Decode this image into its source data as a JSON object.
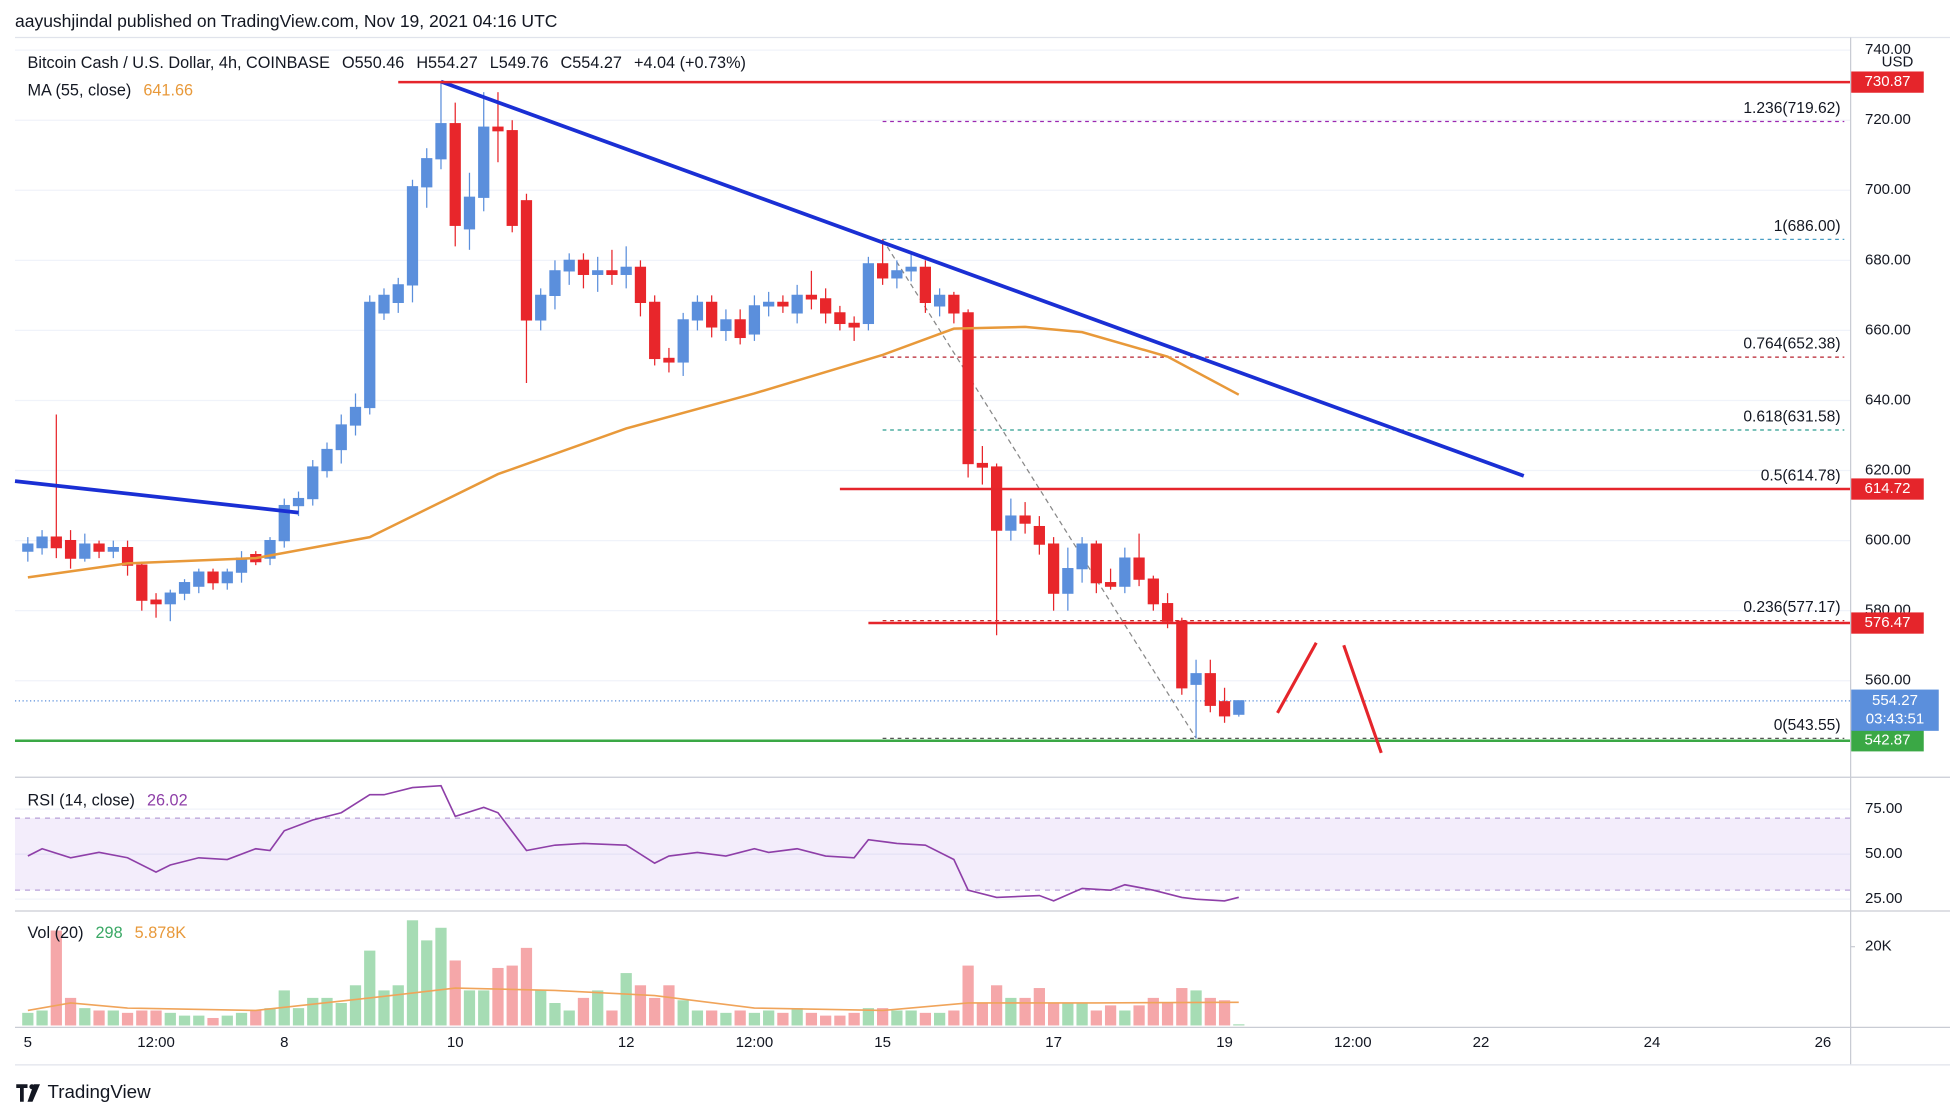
{
  "attribution": "aayushjindal published on TradingView.com, Nov 19, 2021 04:16 UTC",
  "brand": "TradingView",
  "chart_data": [
    {
      "type": "candlestick",
      "title": "Bitcoin Cash / U.S. Dollar, 4h, COINBASE",
      "quote": [
        {
          "value": 550.46,
          "label": "O550.46"
        },
        {
          "value": 554.27,
          "label": "H554.27"
        },
        {
          "value": 549.76,
          "label": "L549.76"
        },
        {
          "value": 554.27,
          "label": "C554.27"
        }
      ],
      "change": "+4.04 (+0.73%)",
      "currency": "USD",
      "up_color": "#5b8fdc",
      "down_color": "#e8262b",
      "x": [
        0,
        1,
        2,
        3,
        4,
        5,
        6,
        7,
        8,
        9,
        10,
        11,
        12,
        13,
        14,
        15,
        16,
        17,
        18,
        19,
        20,
        21,
        22,
        23,
        24,
        25,
        26,
        27,
        28,
        29,
        30,
        31,
        32,
        33,
        34,
        35,
        36,
        37,
        38,
        39,
        40,
        41,
        42,
        43,
        44,
        45,
        46,
        47,
        48,
        49,
        50,
        51,
        52,
        53,
        54,
        55,
        56,
        57,
        58,
        59,
        60,
        61,
        62,
        63,
        64,
        65,
        66,
        67,
        68,
        69,
        70,
        71,
        72,
        73,
        74,
        75,
        76,
        77,
        78,
        79,
        80,
        81,
        82,
        83,
        84,
        85
      ],
      "open": [
        597,
        598,
        601,
        600,
        595,
        599,
        597,
        598,
        593,
        583,
        582,
        585,
        587,
        591,
        588,
        591,
        596,
        595,
        600,
        610,
        612,
        620,
        626,
        633,
        638,
        665,
        668,
        673,
        701,
        709,
        719,
        689,
        698,
        718,
        717,
        697,
        663,
        670,
        677,
        680,
        676,
        677,
        676,
        678,
        668,
        652,
        651,
        663,
        668,
        660,
        663,
        659,
        667,
        668,
        665,
        670,
        669,
        665,
        662,
        662,
        679,
        675,
        677,
        678,
        667,
        670,
        665,
        622,
        621,
        603,
        607,
        604,
        599,
        585,
        592,
        599,
        588,
        587,
        595,
        589,
        582,
        577,
        559,
        562,
        554,
        550.46
      ],
      "high": [
        601,
        603,
        636,
        603,
        602,
        600,
        600,
        600,
        594,
        585,
        586,
        589,
        592,
        592,
        592,
        597,
        597,
        601,
        612,
        614,
        623,
        628,
        636,
        642,
        670,
        672,
        675,
        703,
        712,
        730.87,
        725,
        705,
        728,
        728,
        720,
        699,
        672,
        680,
        682,
        682,
        681,
        683,
        684,
        680,
        670,
        655,
        665,
        670,
        670,
        666,
        666,
        670,
        671,
        670,
        673,
        677,
        672,
        667,
        664,
        681,
        686,
        680,
        682,
        680,
        672,
        671,
        666,
        627,
        622,
        612,
        611,
        607,
        601,
        598,
        601,
        600,
        592,
        598,
        602,
        590,
        585,
        578,
        566,
        566,
        558,
        554.27
      ],
      "low": [
        594,
        596,
        595,
        592,
        594,
        595,
        595,
        590,
        580,
        578,
        577,
        583,
        585,
        586,
        586,
        588,
        593,
        593,
        598,
        607,
        610,
        618,
        622,
        630,
        636,
        663,
        665,
        668,
        695,
        706,
        684,
        683,
        694,
        708,
        688,
        645,
        660,
        666,
        673,
        672,
        671,
        673,
        672,
        664,
        650,
        648,
        647,
        660,
        658,
        657,
        656,
        657,
        664,
        665,
        662,
        666,
        662,
        660,
        657,
        660,
        673,
        672,
        674,
        665,
        664,
        662,
        618,
        616,
        573,
        600,
        602,
        596,
        580,
        580,
        588,
        585,
        586,
        585,
        587,
        580,
        575,
        556,
        543.55,
        551,
        548,
        549.76
      ],
      "close": [
        599,
        601,
        598,
        595,
        599,
        597,
        598,
        593,
        583,
        582,
        585,
        588,
        591,
        588,
        591,
        595,
        594,
        600,
        610,
        612,
        621,
        626,
        633,
        638,
        668,
        670,
        673,
        701,
        709,
        719,
        690,
        698,
        718,
        717,
        690,
        663,
        670,
        677,
        680,
        676,
        677,
        676,
        678,
        668,
        652,
        651,
        663,
        668,
        661,
        663,
        658,
        667,
        668,
        667,
        670,
        669,
        665,
        662,
        661,
        679,
        675,
        677,
        678,
        668,
        670,
        665,
        622,
        621,
        603,
        607,
        605,
        599,
        585,
        592,
        599,
        588,
        587,
        595,
        589,
        582,
        577,
        558,
        562,
        553,
        550,
        554.27
      ],
      "ma": {
        "name": "MA (55, close)",
        "color": "#e8993a",
        "x": [
          0,
          7,
          16,
          24,
          33,
          42,
          51,
          60,
          65,
          70,
          74,
          80,
          85
        ],
        "values": [
          589.5,
          593.5,
          595,
          601,
          619,
          632,
          642,
          653,
          660.5,
          661,
          659.5,
          652.5,
          641.66
        ]
      },
      "trendlines": [
        {
          "color": "#1a2fd4",
          "x": [
            29,
            105
          ],
          "values": [
            731,
            618.5
          ]
        },
        {
          "color": "#1a2fd4",
          "x": [
            -0.9,
            19
          ],
          "values": [
            617,
            608
          ]
        }
      ],
      "levels": [
        {
          "value": 730.87,
          "from": 26,
          "color": "#e5252b"
        },
        {
          "value": 614.72,
          "from": 57,
          "color": "#e5252b"
        },
        {
          "value": 576.47,
          "from": 59,
          "color": "#e5252b"
        },
        {
          "value": 542.87,
          "from": -0.9,
          "color": "#3aa845"
        }
      ],
      "fib": {
        "from": 60,
        "to": 127.5,
        "levels": [
          {
            "value": 719.62,
            "label": "1.236(719.62)",
            "color": "#9c27b0"
          },
          {
            "value": 686,
            "label": "1(686.00)",
            "color": "#4a9ec4"
          },
          {
            "value": 652.38,
            "label": "0.764(652.38)",
            "color": "#b7202e"
          },
          {
            "value": 631.58,
            "label": "0.618(631.58)",
            "color": "#2a9d8f"
          },
          {
            "value": 614.78,
            "label": "0.5(614.78)",
            "color": "#555555"
          },
          {
            "value": 577.17,
            "label": "0.236(577.17)",
            "color": "#c62828"
          },
          {
            "value": 543.55,
            "label": "0(543.55)",
            "color": "#555555"
          }
        ],
        "diagonal": {
          "x": [
            60,
            82
          ],
          "values": [
            686,
            543.55
          ],
          "color": "#888888"
        }
      },
      "last": {
        "value": 554.27,
        "countdown": "03:43:51",
        "color": "#5b8fdc"
      },
      "xlim": [
        -0.9,
        127.9
      ],
      "xticks": [
        {
          "value": 0,
          "label": "5"
        },
        {
          "value": 9,
          "label": "12:00"
        },
        {
          "value": 18,
          "label": "8"
        },
        {
          "value": 30,
          "label": "10"
        },
        {
          "value": 42,
          "label": "12"
        },
        {
          "value": 51,
          "label": "12:00"
        },
        {
          "value": 60,
          "label": "15"
        },
        {
          "value": 72,
          "label": "17"
        },
        {
          "value": 84,
          "label": "19"
        },
        {
          "value": 93,
          "label": "12:00"
        },
        {
          "value": 102,
          "label": "22"
        },
        {
          "value": 114,
          "label": "24"
        },
        {
          "value": 126,
          "label": "26"
        }
      ],
      "ylim": [
        533,
        743.6
      ],
      "yticks": [
        {
          "value": 740,
          "label": "740.00"
        },
        {
          "value": 720,
          "label": "720.00"
        },
        {
          "value": 700,
          "label": "700.00"
        },
        {
          "value": 680,
          "label": "680.00"
        },
        {
          "value": 660,
          "label": "660.00"
        },
        {
          "value": 640,
          "label": "640.00"
        },
        {
          "value": 620,
          "label": "620.00"
        },
        {
          "value": 600,
          "label": "600.00"
        },
        {
          "value": 580,
          "label": "580.00"
        },
        {
          "value": 560,
          "label": "560.00"
        }
      ],
      "grid": true
    },
    {
      "type": "line",
      "title": "RSI (14, close)",
      "color": "#8e3fa8",
      "band": [
        30,
        70
      ],
      "band_color": "#9c6ade",
      "x": [
        0,
        1,
        3,
        5,
        7,
        9,
        10,
        12,
        14,
        16,
        17,
        18,
        20,
        22,
        24,
        25,
        27,
        29,
        30,
        32,
        33,
        35,
        37,
        39,
        42,
        44,
        45,
        47,
        49,
        51,
        52,
        54,
        56,
        58,
        59,
        61,
        63,
        65,
        66,
        68,
        71,
        72,
        74,
        76,
        77,
        79,
        81,
        82,
        84,
        85
      ],
      "values": [
        49,
        53,
        48,
        51,
        48,
        40,
        44,
        48,
        47,
        53,
        52,
        63,
        69,
        73,
        83,
        83,
        87,
        88,
        71,
        76,
        73,
        52,
        55,
        56,
        55,
        45,
        49,
        51,
        49,
        53,
        51,
        53,
        49,
        48,
        58,
        56,
        55,
        47,
        30,
        26,
        27,
        24,
        31,
        30,
        33,
        30,
        26,
        25,
        24,
        26.02
      ],
      "ylim": [
        18.75,
        92.4
      ],
      "yticks": [
        {
          "value": 75,
          "label": "75.00"
        },
        {
          "value": 50,
          "label": "50.00"
        },
        {
          "value": 25,
          "label": "25.00"
        }
      ],
      "grid": true
    },
    {
      "type": "bar",
      "title": "Vol (20)",
      "up_color": "#a6dcb4",
      "down_color": "#f5a7a9",
      "values": [
        3200,
        3800,
        24100,
        7000,
        4400,
        3800,
        3800,
        3200,
        3800,
        3800,
        3200,
        2500,
        2500,
        1900,
        2500,
        3200,
        3800,
        4400,
        8900,
        4400,
        7000,
        7000,
        5700,
        10200,
        19000,
        8900,
        10200,
        26700,
        21600,
        24800,
        16500,
        8900,
        8900,
        14600,
        15200,
        19700,
        8900,
        5700,
        3800,
        7000,
        8900,
        3800,
        13300,
        10200,
        7000,
        10200,
        6400,
        3800,
        3800,
        3200,
        3800,
        3200,
        3800,
        3200,
        4400,
        3200,
        2500,
        2500,
        3200,
        4400,
        4400,
        3800,
        3800,
        3200,
        3200,
        3800,
        15200,
        5700,
        10200,
        7000,
        7000,
        9500,
        5700,
        5700,
        5700,
        3800,
        5100,
        3800,
        5100,
        7000,
        5700,
        9500,
        8900,
        7000,
        6400,
        298
      ],
      "ma": {
        "color": "#f0a45a",
        "x": [
          0,
          3,
          7,
          16,
          24,
          30,
          37,
          44,
          51,
          60,
          66,
          75,
          85
        ],
        "values": [
          3800,
          5700,
          4400,
          3800,
          7000,
          9500,
          8900,
          7600,
          4400,
          3800,
          5700,
          5700,
          5878
        ],
        "last_label": {
          "value": 5878,
          "label": "5.878K"
        }
      },
      "ylim": [
        0,
        28575
      ],
      "yticks": [
        {
          "value": 20000,
          "label": "20K"
        }
      ],
      "grid": false
    }
  ]
}
